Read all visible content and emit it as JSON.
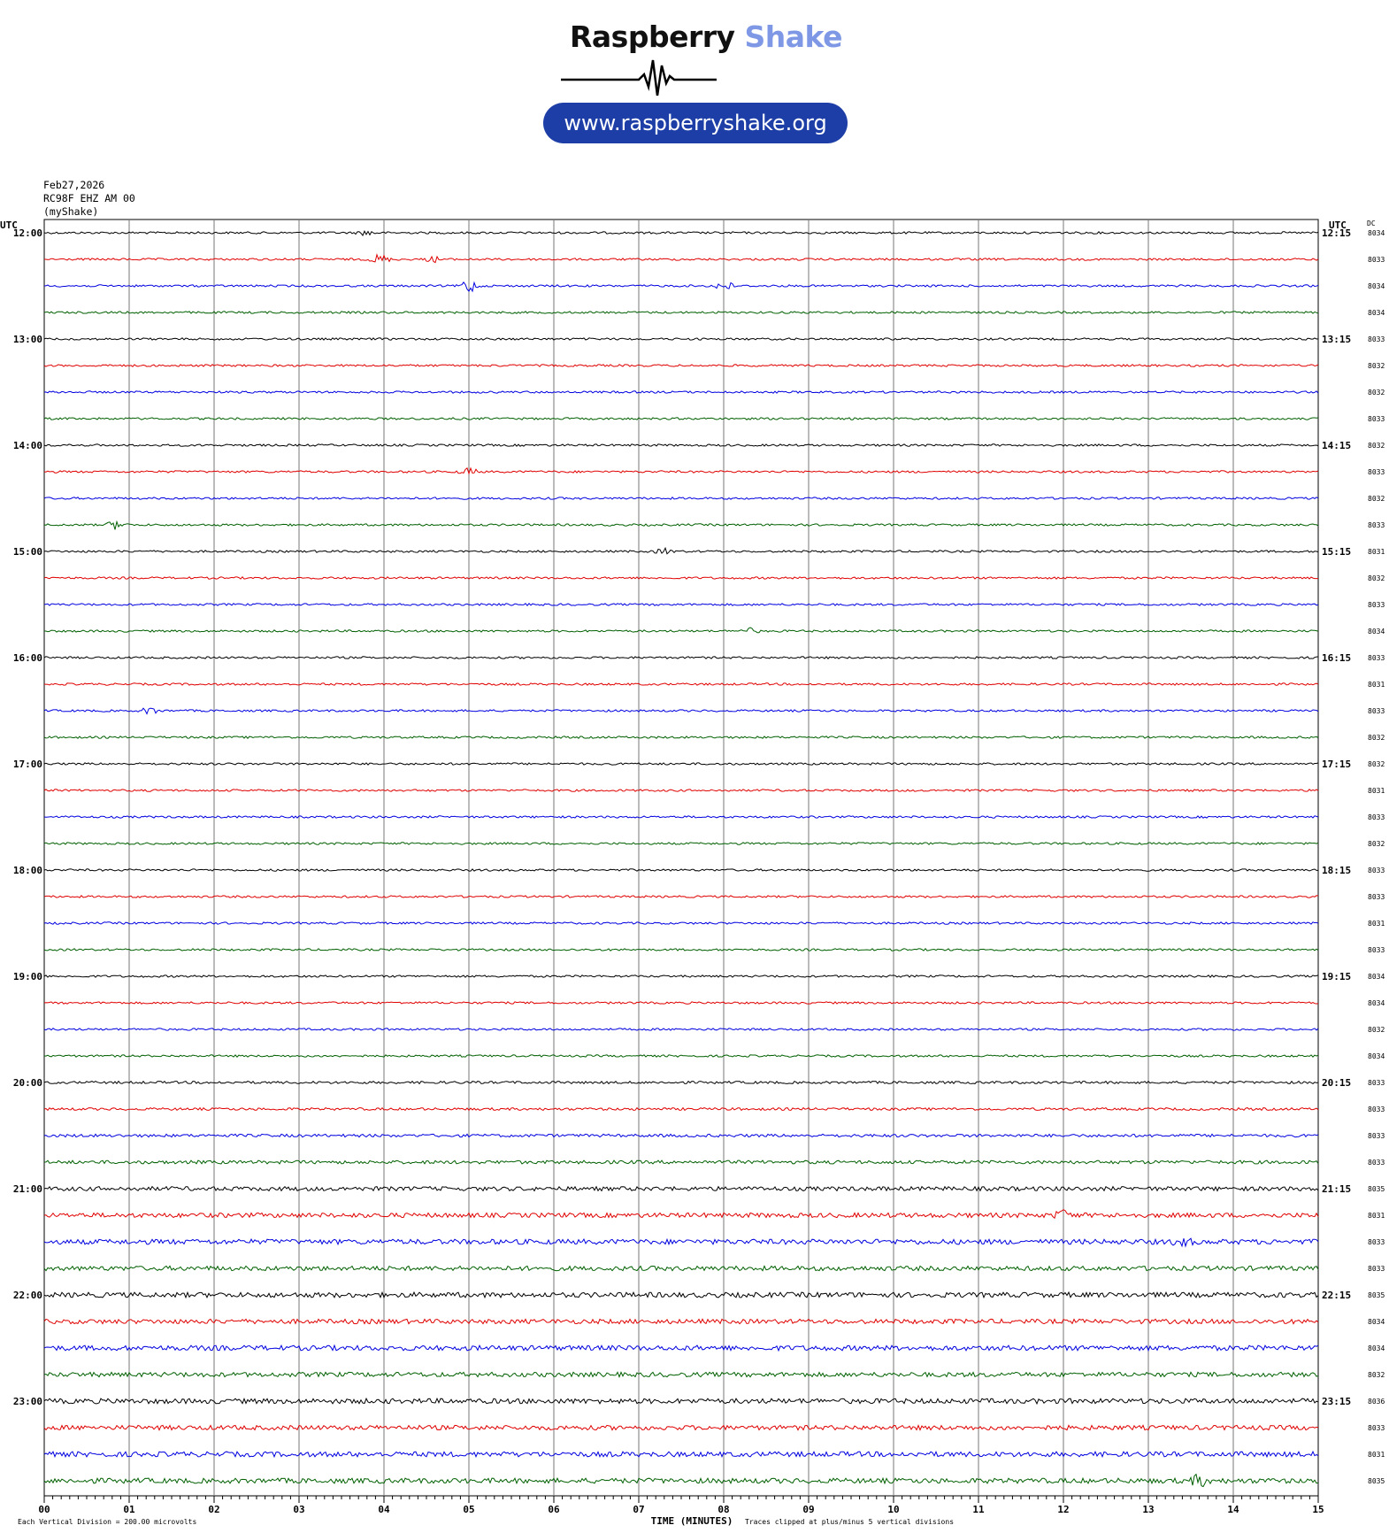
{
  "logo": {
    "word1": "Raspberry",
    "word2": "Shake",
    "url": "www.raspberryshake.org",
    "colors": {
      "word1": "#111111",
      "word2": "#7f98e6",
      "pill": "#1d3ea6"
    }
  },
  "meta": {
    "date": "Feb27,2026",
    "station": "RC98F EHZ AM 00",
    "source": "(myShake)"
  },
  "chart_data": {
    "type": "line",
    "title": "",
    "left_axis_title": "UTC",
    "right_axis_title": "UTC",
    "dc_title": "DC",
    "xlabel": "TIME (MINUTES)",
    "xlim": [
      0,
      15
    ],
    "x_ticks": [
      "00",
      "01",
      "02",
      "03",
      "04",
      "05",
      "06",
      "07",
      "08",
      "09",
      "10",
      "11",
      "12",
      "13",
      "14",
      "15"
    ],
    "grid": true,
    "trace_colors": [
      "#000000",
      "#e00000",
      "#0000e0",
      "#006000"
    ],
    "left_hour_labels": [
      "12:00",
      "13:00",
      "14:00",
      "15:00",
      "16:00",
      "17:00",
      "18:00",
      "19:00",
      "20:00",
      "21:00",
      "22:00",
      "23:00"
    ],
    "right_hour_labels": [
      "12:15",
      "13:15",
      "14:15",
      "15:15",
      "16:15",
      "17:15",
      "18:15",
      "19:15",
      "20:15",
      "21:15",
      "22:15",
      "23:15"
    ],
    "dc_offsets": [
      "8034",
      "8033",
      "8034",
      "8034",
      "8033",
      "8032",
      "8032",
      "8033",
      "8032",
      "8033",
      "8032",
      "8033",
      "8031",
      "8032",
      "8033",
      "8034",
      "8033",
      "8031",
      "8033",
      "8032",
      "8032",
      "8031",
      "8033",
      "8032",
      "8033",
      "8033",
      "8031",
      "8033",
      "8034",
      "8034",
      "8032",
      "8034",
      "8033",
      "8033",
      "8033",
      "8033",
      "8035",
      "8031",
      "8033",
      "8033",
      "8035",
      "8034",
      "8034",
      "8032",
      "8036",
      "8033",
      "8031",
      "8035"
    ],
    "trace_noise": [
      1,
      1,
      1,
      1,
      1,
      1,
      1,
      1,
      1,
      1,
      1,
      1,
      1,
      1,
      1,
      1,
      1,
      1,
      1,
      1,
      1,
      1,
      1,
      1,
      1,
      1,
      1,
      1,
      1,
      1,
      1,
      1,
      1.2,
      1.2,
      1.4,
      1.6,
      2,
      2.2,
      2.4,
      2.2,
      2.4,
      2.2,
      2.4,
      2.2,
      2.4,
      2.2,
      2.4,
      2.4
    ],
    "events": [
      {
        "row": 0,
        "minute": 3.8,
        "amp": 3
      },
      {
        "row": 1,
        "minute": 3.95,
        "amp": 6
      },
      {
        "row": 1,
        "minute": 4.6,
        "amp": 3
      },
      {
        "row": 2,
        "minute": 5.0,
        "amp": 8
      },
      {
        "row": 2,
        "minute": 8.0,
        "amp": 6
      },
      {
        "row": 9,
        "minute": 5.0,
        "amp": 4
      },
      {
        "row": 11,
        "minute": 0.85,
        "amp": 5
      },
      {
        "row": 12,
        "minute": 7.3,
        "amp": 3
      },
      {
        "row": 15,
        "minute": 8.3,
        "amp": 3
      },
      {
        "row": 18,
        "minute": 1.25,
        "amp": 4
      },
      {
        "row": 37,
        "minute": 12.0,
        "amp": 5
      },
      {
        "row": 38,
        "minute": 13.4,
        "amp": 4
      },
      {
        "row": 47,
        "minute": 13.6,
        "amp": 6
      }
    ],
    "footer_left": "Each Vertical Division =  200.00 microvolts",
    "footer_right": "Traces clipped at plus/minus 5 vertical divisions"
  }
}
